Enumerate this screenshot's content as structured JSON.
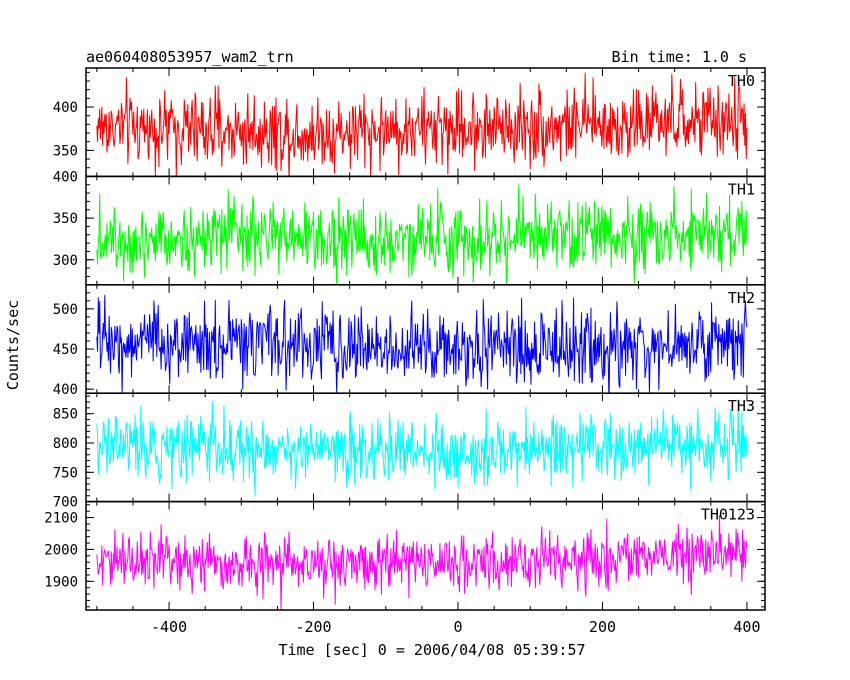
{
  "chart_data": {
    "type": "line",
    "title": "ae060408053957_wam2_trn",
    "bin_time_label": "Bin time: 1.0 s",
    "xlabel": "Time [sec] 0 = 2006/04/08 05:39:57",
    "ylabel": "Counts/sec",
    "xlim": [
      -515,
      425
    ],
    "xticks": [
      -400,
      -200,
      0,
      200,
      400
    ],
    "x_range": [
      -500,
      400
    ],
    "x_step": 1,
    "panels": [
      {
        "name": "TH0",
        "color": "#ff0000",
        "ylim": [
          320,
          445
        ],
        "yticks": [
          350,
          400
        ],
        "mean": 380,
        "noise": 22,
        "trend": [
          [
            -500,
            378
          ],
          [
            -200,
            370
          ],
          [
            0,
            376
          ],
          [
            200,
            380
          ],
          [
            400,
            384
          ]
        ]
      },
      {
        "name": "TH1",
        "color": "#00ff00",
        "ylim": [
          270,
          400
        ],
        "yticks": [
          300,
          350,
          400
        ],
        "mean": 330,
        "noise": 22,
        "trend": [
          [
            -500,
            328
          ],
          [
            -200,
            326
          ],
          [
            0,
            325
          ],
          [
            200,
            330
          ],
          [
            400,
            333
          ]
        ]
      },
      {
        "name": "TH2",
        "color": "#0000ff",
        "ylim": [
          395,
          530
        ],
        "yticks": [
          400,
          450,
          500
        ],
        "mean": 455,
        "noise": 24,
        "trend": [
          [
            -500,
            460
          ],
          [
            -200,
            455
          ],
          [
            0,
            450
          ],
          [
            200,
            452
          ],
          [
            400,
            458
          ]
        ]
      },
      {
        "name": "TH3",
        "color": "#00ffff",
        "ylim": [
          700,
          885
        ],
        "yticks": [
          700,
          750,
          800,
          850
        ],
        "mean": 790,
        "noise": 28,
        "trend": [
          [
            -500,
            800
          ],
          [
            -200,
            785
          ],
          [
            0,
            785
          ],
          [
            200,
            790
          ],
          [
            400,
            800
          ]
        ]
      },
      {
        "name": "TH0123",
        "color": "#ff00ff",
        "ylim": [
          1810,
          2150
        ],
        "yticks": [
          1900,
          2000,
          2100
        ],
        "mean": 1960,
        "noise": 45,
        "trend": [
          [
            -500,
            1965
          ],
          [
            -200,
            1955
          ],
          [
            0,
            1955
          ],
          [
            200,
            1965
          ],
          [
            400,
            1995
          ]
        ]
      }
    ]
  }
}
